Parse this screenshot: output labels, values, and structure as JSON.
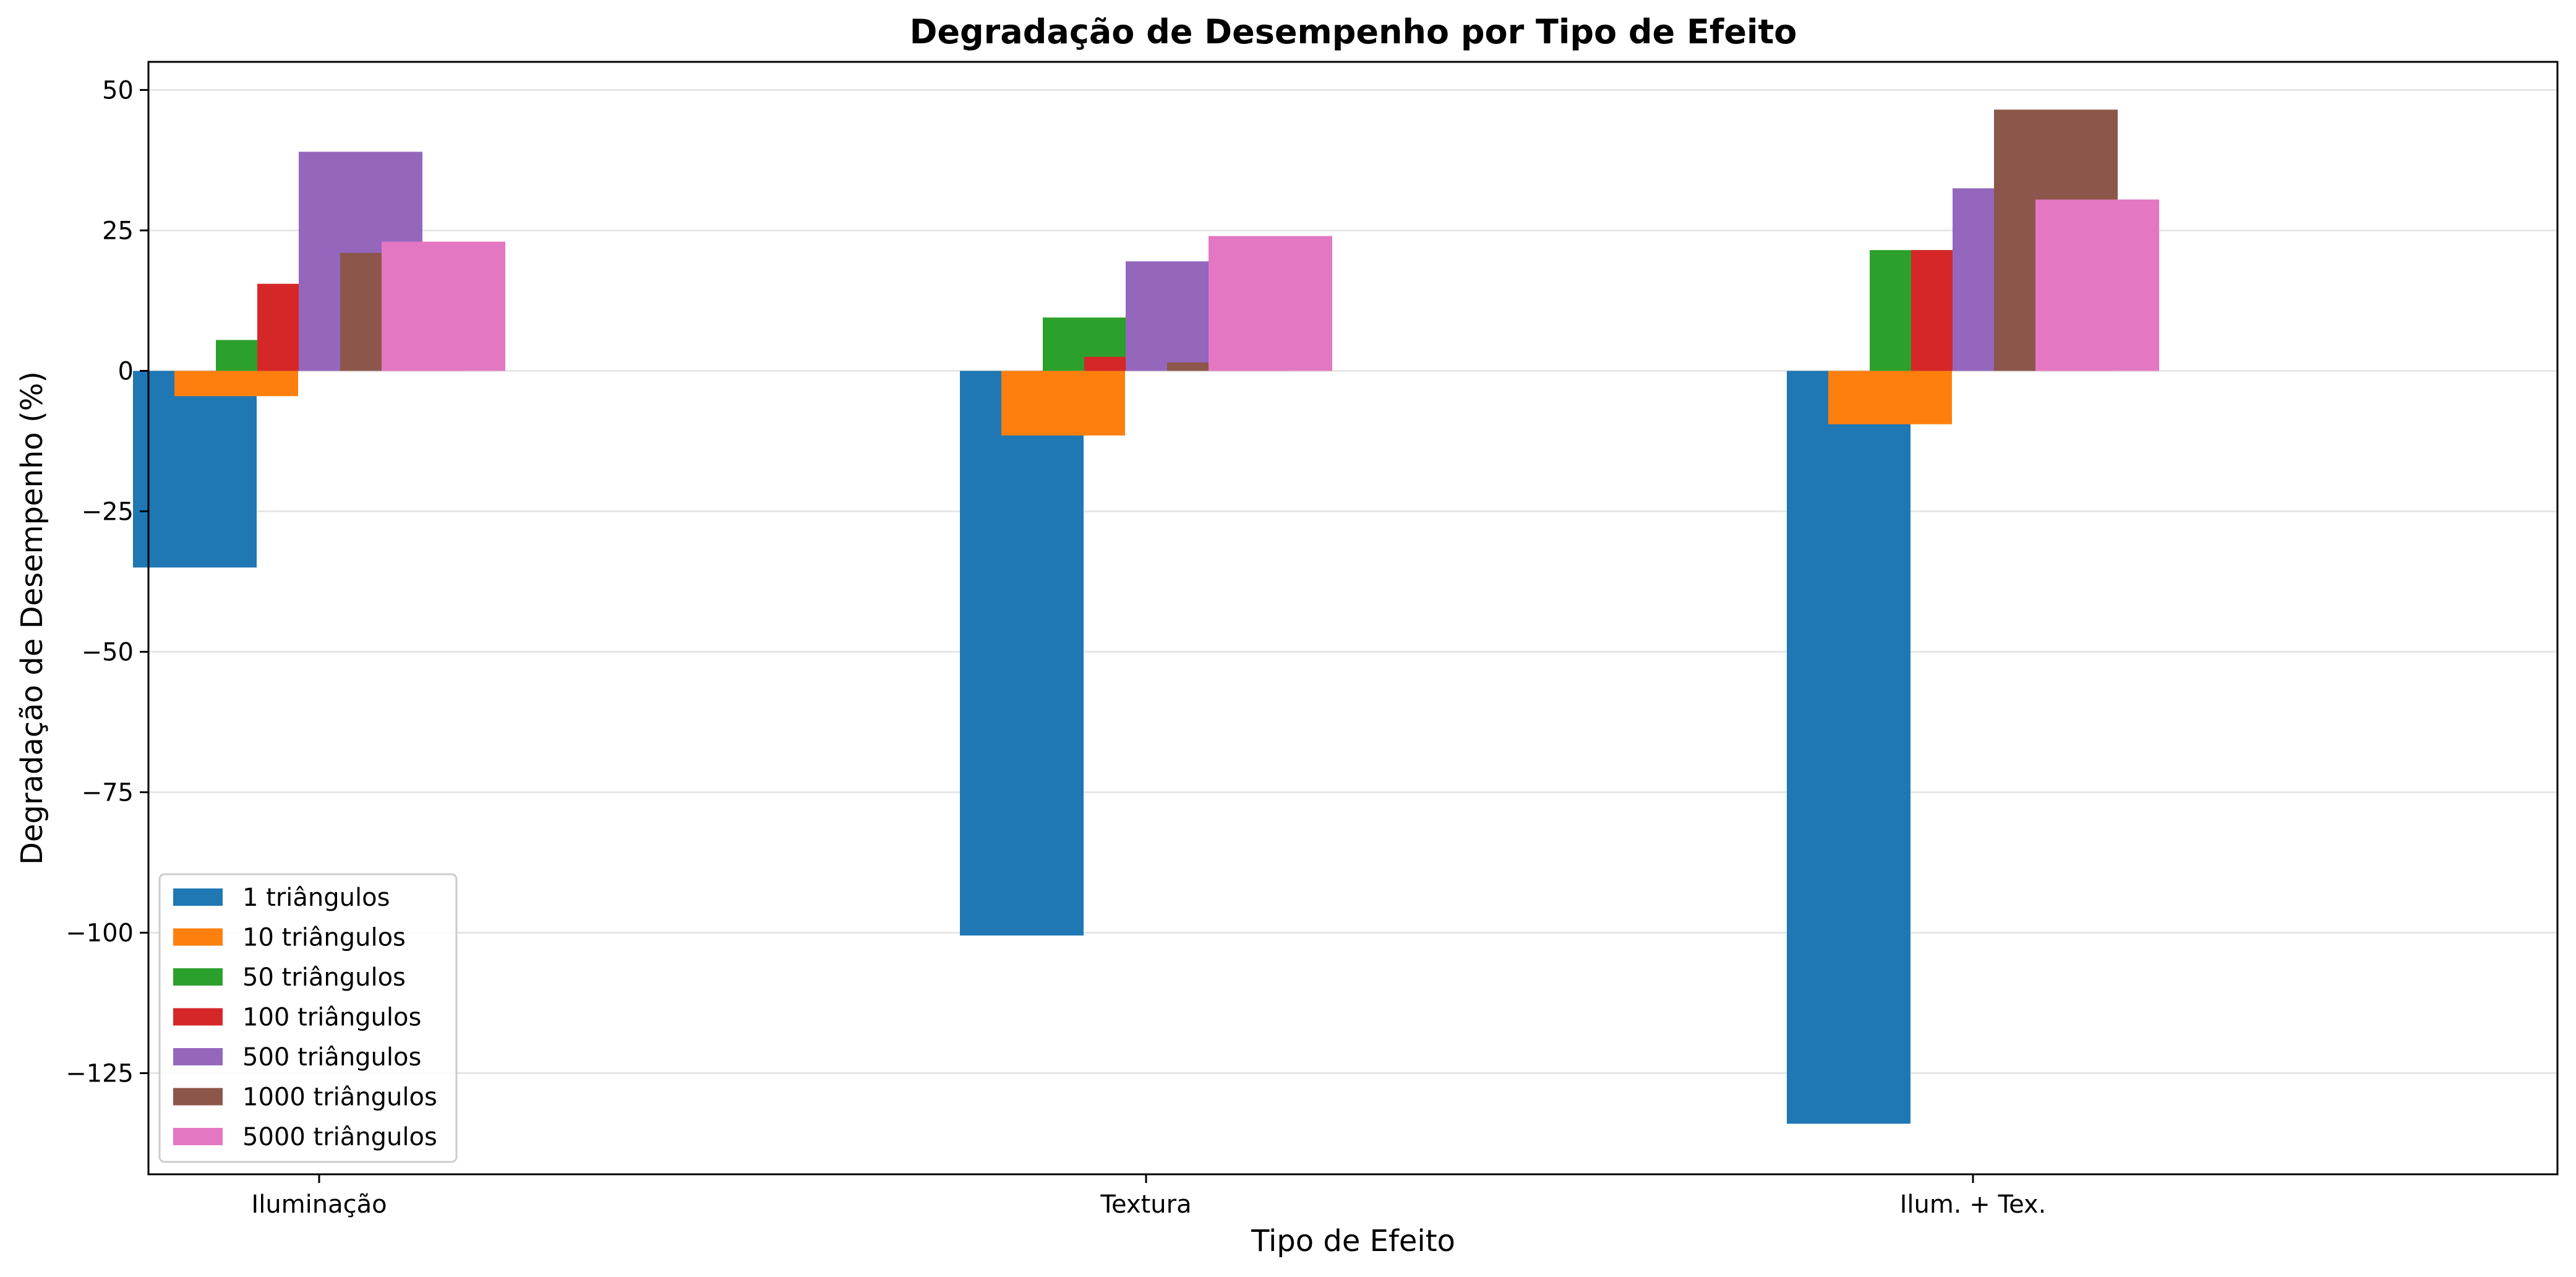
{
  "chart_data": {
    "type": "bar",
    "title": "Degradação de Desempenho por Tipo de Efeito",
    "xlabel": "Tipo de Efeito",
    "ylabel": "Degradação de Desempenho (%)",
    "categories": [
      "Iluminação",
      "Textura",
      "Ilum. + Tex."
    ],
    "ylim": [
      -143,
      55
    ],
    "yticks": [
      50,
      25,
      0,
      -25,
      -50,
      -75,
      -100,
      -125
    ],
    "ytick_labels": [
      "50",
      "25",
      "0",
      "−25",
      "−50",
      "−75",
      "−100",
      "−125"
    ],
    "grid": "horizontal",
    "legend_position": "lower-left",
    "series": [
      {
        "name": "1 triângulos",
        "color": "#1f77b4",
        "values": [
          -35,
          -100.5,
          -134
        ]
      },
      {
        "name": "10 triângulos",
        "color": "#ff7f0e",
        "values": [
          -4.5,
          -11.5,
          -9.5
        ]
      },
      {
        "name": "50 triângulos",
        "color": "#2ca02c",
        "values": [
          5.5,
          9.5,
          21.5
        ]
      },
      {
        "name": "100 triângulos",
        "color": "#d62728",
        "values": [
          15.5,
          2.5,
          21.5
        ]
      },
      {
        "name": "500 triângulos",
        "color": "#9467bd",
        "values": [
          39,
          19.5,
          32.5
        ]
      },
      {
        "name": "1000 triângulos",
        "color": "#8c564b",
        "values": [
          21,
          1.5,
          46.5
        ]
      },
      {
        "name": "5000 triângulos",
        "color": "#e377c2",
        "values": [
          23,
          24,
          30.5
        ]
      }
    ]
  }
}
